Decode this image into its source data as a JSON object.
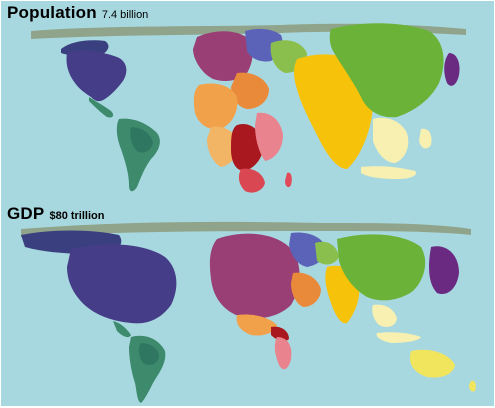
{
  "maps": [
    {
      "id": "population",
      "title": "Population",
      "value": "7.4 billion"
    },
    {
      "id": "gdp",
      "title": "GDP",
      "value": "$80 trillion"
    }
  ],
  "colors": {
    "ocean": "#a8d8df",
    "north_america": "#463d88",
    "latin_america": "#3d8a6d",
    "europe": "#9a3f76",
    "eastern_europe": "#5b63b8",
    "middle_east": "#e98a3a",
    "africa": "#f2a14b",
    "central_africa": "#a8181e",
    "southern_africa": "#e9848e",
    "south_asia": "#f7c20a",
    "east_asia": "#6bb338",
    "japan": "#6a2a82",
    "southeast_asia": "#f7f0b0",
    "oceania": "#f1e55d"
  }
}
